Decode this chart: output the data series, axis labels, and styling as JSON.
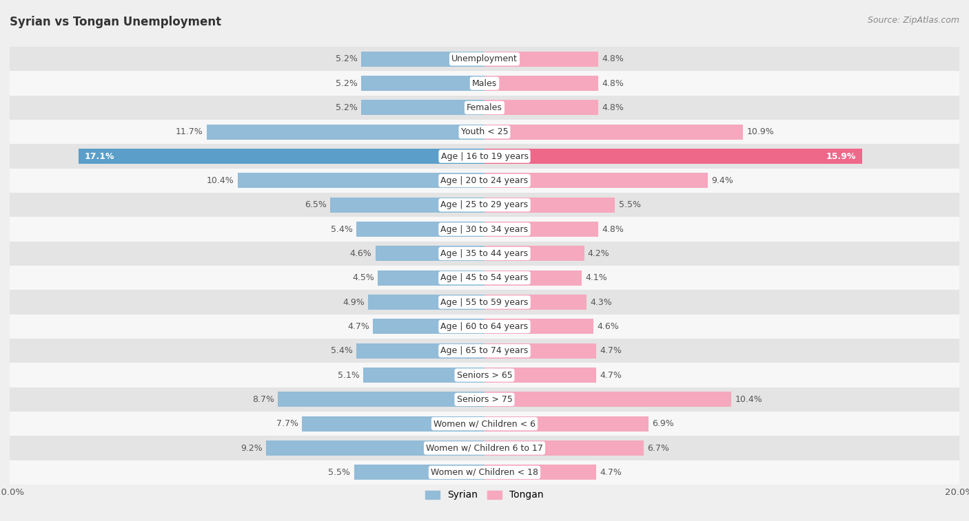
{
  "title": "Syrian vs Tongan Unemployment",
  "source": "Source: ZipAtlas.com",
  "categories": [
    "Unemployment",
    "Males",
    "Females",
    "Youth < 25",
    "Age | 16 to 19 years",
    "Age | 20 to 24 years",
    "Age | 25 to 29 years",
    "Age | 30 to 34 years",
    "Age | 35 to 44 years",
    "Age | 45 to 54 years",
    "Age | 55 to 59 years",
    "Age | 60 to 64 years",
    "Age | 65 to 74 years",
    "Seniors > 65",
    "Seniors > 75",
    "Women w/ Children < 6",
    "Women w/ Children 6 to 17",
    "Women w/ Children < 18"
  ],
  "syrian_values": [
    5.2,
    5.2,
    5.2,
    11.7,
    17.1,
    10.4,
    6.5,
    5.4,
    4.6,
    4.5,
    4.9,
    4.7,
    5.4,
    5.1,
    8.7,
    7.7,
    9.2,
    5.5
  ],
  "tongan_values": [
    4.8,
    4.8,
    4.8,
    10.9,
    15.9,
    9.4,
    5.5,
    4.8,
    4.2,
    4.1,
    4.3,
    4.6,
    4.7,
    4.7,
    10.4,
    6.9,
    6.7,
    4.7
  ],
  "syrian_color": "#92bcd8",
  "tongan_color": "#f5a8be",
  "syrian_highlight_color": "#5b9ec9",
  "tongan_highlight_color": "#ee688a",
  "max_value": 20.0,
  "background_color": "#efefef",
  "row_bg_even": "#f7f7f7",
  "row_bg_odd": "#e4e4e4",
  "bar_height": 0.62,
  "label_fontsize": 9,
  "value_fontsize": 9,
  "title_fontsize": 12,
  "source_fontsize": 9
}
